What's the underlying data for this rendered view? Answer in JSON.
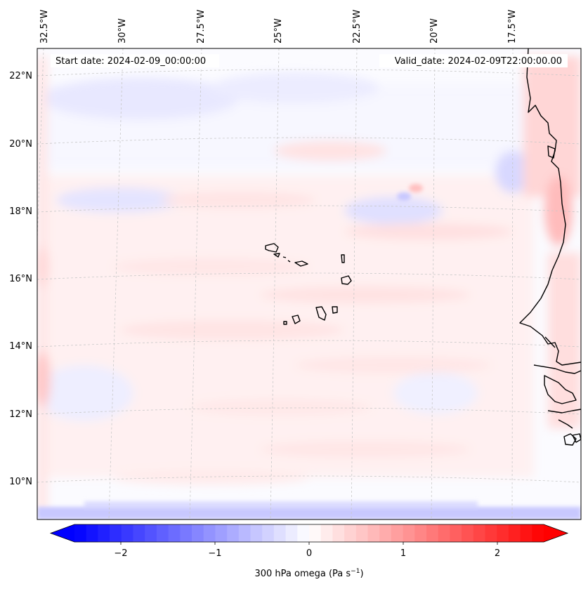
{
  "map": {
    "start_label": "Start date: 2024-02-09_00:00:00",
    "valid_label": "Valid_date: 2024-02-09T22:00:00.00",
    "lon_labels": [
      "32.5°W",
      "30°W",
      "27.5°W",
      "25°W",
      "22.5°W",
      "20°W",
      "17.5°W"
    ],
    "lat_labels": [
      "22°N",
      "20°N",
      "18°N",
      "16°N",
      "14°N",
      "12°N",
      "10°N"
    ],
    "field_colors": {
      "low": "#0000ff",
      "mid": "#ffffff",
      "high": "#ff0000",
      "coast": "#000000",
      "grid": "#c8c8c8"
    }
  },
  "colorbar": {
    "ticks": [
      "−2",
      "−1",
      "0",
      "1",
      "2"
    ],
    "label_main": "300 hPa omega (Pa s",
    "label_exp": "−1",
    "label_close": ")",
    "range": [
      -2.6,
      2.6
    ],
    "extend": "both",
    "cmap": "bwr"
  }
}
